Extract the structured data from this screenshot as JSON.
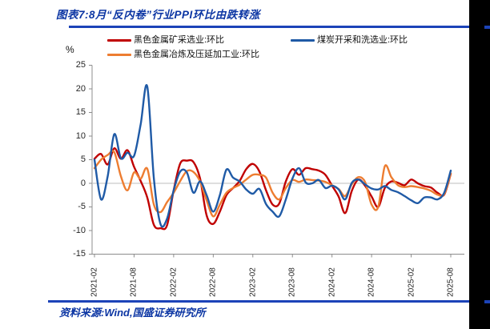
{
  "page": {
    "title": "图表7:8月“反内卷”行业PPI环比由跌转涨",
    "source_note": "资料来源:Wind,国盛证券研究所",
    "accent_rule_color": "#1C43B8",
    "title_color": "#0B35A3"
  },
  "chart_data": {
    "type": "line",
    "title": "图表7:8月“反内卷”行业PPI环比由跌转涨",
    "ylabel": "%",
    "ylim": [
      -15,
      25
    ],
    "ytick_step": 5,
    "yticks": [
      25,
      20,
      15,
      10,
      5,
      0,
      -5,
      -10,
      -15
    ],
    "grid": "zero-line-only",
    "legend_position": "top",
    "zero_line_color": "#C9C9C9",
    "axis_color": "#8C8C8C",
    "x_tick_labels": [
      "2021-02",
      "2021-08",
      "2022-02",
      "2022-08",
      "2023-02",
      "2023-08",
      "2024-02",
      "2024-08",
      "2025-02",
      "2025-08"
    ],
    "x": [
      "2021-02",
      "2021-03",
      "2021-04",
      "2021-05",
      "2021-06",
      "2021-07",
      "2021-08",
      "2021-09",
      "2021-10",
      "2021-11",
      "2021-12",
      "2022-01",
      "2022-02",
      "2022-03",
      "2022-04",
      "2022-05",
      "2022-06",
      "2022-07",
      "2022-08",
      "2022-09",
      "2022-10",
      "2022-11",
      "2022-12",
      "2023-01",
      "2023-02",
      "2023-03",
      "2023-04",
      "2023-05",
      "2023-06",
      "2023-07",
      "2023-08",
      "2023-09",
      "2023-10",
      "2023-11",
      "2023-12",
      "2024-01",
      "2024-02",
      "2024-03",
      "2024-04",
      "2024-05",
      "2024-06",
      "2024-07",
      "2024-08",
      "2024-09",
      "2024-10",
      "2024-11",
      "2024-12",
      "2025-01",
      "2025-02",
      "2025-03",
      "2025-04",
      "2025-05",
      "2025-06",
      "2025-07",
      "2025-08"
    ],
    "series": [
      {
        "name": "黑色金属矿采选业:环比",
        "color": "#C00000",
        "values": [
          5.2,
          6.2,
          4.0,
          7.4,
          5.2,
          7.0,
          3.5,
          0.5,
          -3.0,
          -8.8,
          -9.5,
          -8.9,
          -1.5,
          4.2,
          4.8,
          4.5,
          1.0,
          -6.8,
          -8.6,
          -6.0,
          -2.5,
          -1.0,
          0.5,
          3.0,
          4.1,
          2.5,
          -1.5,
          -4.5,
          -4.3,
          0.4,
          3.0,
          1.8,
          3.2,
          3.0,
          2.7,
          1.8,
          -0.5,
          -2.8,
          -6.3,
          -1.6,
          0.8,
          -0.5,
          -2.8,
          -5.0,
          -1.0,
          0.4,
          0.1,
          -0.4,
          0.8,
          0.0,
          -0.6,
          -0.9,
          -2.0,
          -2.4,
          2.0
        ]
      },
      {
        "name": "煤炭开采和洗选业:环比",
        "color": "#1F5AA6",
        "values": [
          5.0,
          -3.4,
          1.5,
          10.4,
          5.3,
          6.5,
          5.8,
          12.5,
          20.5,
          1.0,
          -8.6,
          -7.5,
          -1.5,
          2.5,
          2.3,
          -2.0,
          0.4,
          -2.5,
          -6.0,
          -2.5,
          2.9,
          1.2,
          0.4,
          -1.3,
          -2.2,
          -1.2,
          -4.4,
          -6.0,
          -7.0,
          -3.4,
          1.0,
          3.2,
          0.2,
          0.0,
          0.7,
          -1.0,
          -0.5,
          -1.3,
          -3.4,
          0.1,
          0.8,
          -0.2,
          -1.1,
          -1.3,
          -0.6,
          -1.4,
          -1.9,
          -2.7,
          -3.6,
          -4.2,
          -3.0,
          -3.0,
          -3.4,
          -2.0,
          2.7
        ]
      },
      {
        "name": "黑色金属冶炼及压延加工业:环比",
        "color": "#ED7D31",
        "values": [
          3.2,
          5.0,
          6.0,
          6.6,
          1.5,
          -1.5,
          2.3,
          1.0,
          3.1,
          -4.5,
          -6.1,
          -4.0,
          -2.0,
          0.5,
          2.6,
          2.4,
          0.4,
          -3.6,
          -7.0,
          -4.5,
          -2.0,
          -1.0,
          -0.3,
          0.8,
          1.8,
          1.8,
          1.2,
          -2.0,
          -3.4,
          -1.0,
          0.7,
          0.3,
          0.8,
          0.7,
          0.6,
          0.3,
          -0.4,
          -1.2,
          -2.7,
          -0.2,
          1.3,
          0.3,
          -4.5,
          -5.0,
          3.6,
          1.3,
          -0.4,
          -0.8,
          -0.6,
          -0.8,
          -1.1,
          -1.6,
          -2.4,
          -2.3,
          2.1
        ]
      }
    ]
  }
}
